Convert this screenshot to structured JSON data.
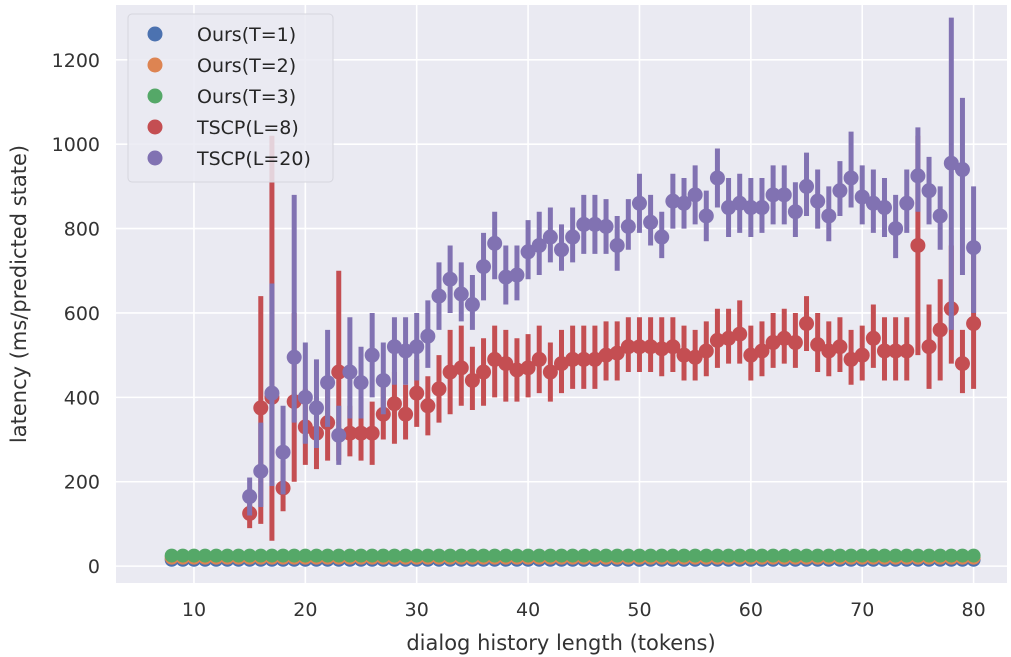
{
  "chart_data": {
    "type": "scatter",
    "xlabel": "dialog history length (tokens)",
    "ylabel": "latency (ms/predicted state)",
    "xlim": [
      3,
      83
    ],
    "ylim": [
      -40,
      1330
    ],
    "xticks": [
      10,
      20,
      30,
      40,
      50,
      60,
      70,
      80
    ],
    "yticks": [
      0,
      200,
      400,
      600,
      800,
      1000,
      1200
    ],
    "grid": true,
    "legend_position": "top-left",
    "series": [
      {
        "name": "Ours(T=1)",
        "color": "#4c72b0",
        "x_start": 8,
        "x_end": 80,
        "values": [
          15,
          15,
          15,
          15,
          15,
          15,
          15,
          15,
          15,
          15,
          15,
          15,
          15,
          15,
          15,
          15,
          15,
          15,
          15,
          15,
          15,
          15,
          15,
          15,
          15,
          15,
          15,
          15,
          15,
          15,
          15,
          15,
          15,
          15,
          15,
          15,
          15,
          15,
          15,
          15,
          15,
          15,
          15,
          15,
          15,
          15,
          15,
          15,
          15,
          15,
          15,
          15,
          15,
          15,
          15,
          15,
          15,
          15,
          15,
          15,
          15,
          15,
          15,
          15,
          15,
          15,
          15,
          15,
          15,
          15,
          15,
          15,
          15
        ],
        "err_low": [
          12,
          12,
          12,
          12,
          12,
          12,
          12,
          12,
          12,
          12,
          12,
          12,
          12,
          12,
          12,
          12,
          12,
          12,
          12,
          12,
          12,
          12,
          12,
          12,
          12,
          12,
          12,
          12,
          12,
          12,
          12,
          12,
          12,
          12,
          12,
          12,
          12,
          12,
          12,
          12,
          12,
          12,
          12,
          12,
          12,
          12,
          12,
          12,
          12,
          12,
          12,
          12,
          12,
          12,
          12,
          12,
          12,
          12,
          12,
          12,
          12,
          12,
          12,
          12,
          12,
          12,
          12,
          12,
          12,
          12,
          12,
          12,
          12
        ],
        "err_high": [
          18,
          18,
          18,
          18,
          18,
          18,
          18,
          18,
          18,
          18,
          18,
          18,
          18,
          18,
          18,
          18,
          18,
          18,
          18,
          18,
          18,
          18,
          18,
          18,
          18,
          18,
          18,
          18,
          18,
          18,
          18,
          18,
          18,
          18,
          18,
          18,
          18,
          18,
          18,
          18,
          18,
          18,
          18,
          18,
          18,
          18,
          18,
          18,
          18,
          18,
          18,
          18,
          18,
          18,
          18,
          18,
          18,
          18,
          18,
          18,
          18,
          18,
          18,
          18,
          18,
          18,
          18,
          18,
          18,
          18,
          18,
          18,
          18
        ]
      },
      {
        "name": "Ours(T=2)",
        "color": "#dd8452",
        "x_start": 8,
        "x_end": 80,
        "values": [
          20,
          20,
          20,
          20,
          20,
          20,
          20,
          20,
          20,
          20,
          20,
          20,
          20,
          20,
          20,
          20,
          20,
          20,
          20,
          20,
          20,
          20,
          20,
          20,
          20,
          20,
          20,
          20,
          20,
          20,
          20,
          20,
          20,
          20,
          20,
          20,
          20,
          20,
          20,
          20,
          20,
          20,
          20,
          20,
          20,
          20,
          20,
          20,
          20,
          20,
          20,
          20,
          20,
          20,
          20,
          20,
          20,
          20,
          20,
          20,
          20,
          20,
          20,
          20,
          20,
          20,
          20,
          20,
          20,
          20,
          20,
          20,
          20
        ],
        "err_low": [
          17,
          17,
          17,
          17,
          17,
          17,
          17,
          17,
          17,
          17,
          17,
          17,
          17,
          17,
          17,
          17,
          17,
          17,
          17,
          17,
          17,
          17,
          17,
          17,
          17,
          17,
          17,
          17,
          17,
          17,
          17,
          17,
          17,
          17,
          17,
          17,
          17,
          17,
          17,
          17,
          17,
          17,
          17,
          17,
          17,
          17,
          17,
          17,
          17,
          17,
          17,
          17,
          17,
          17,
          17,
          17,
          17,
          17,
          17,
          17,
          17,
          17,
          17,
          17,
          17,
          17,
          17,
          17,
          17,
          17,
          17,
          17,
          17
        ],
        "err_high": [
          23,
          23,
          23,
          23,
          23,
          23,
          23,
          23,
          23,
          23,
          23,
          23,
          23,
          23,
          23,
          23,
          23,
          23,
          23,
          23,
          23,
          23,
          23,
          23,
          23,
          23,
          23,
          23,
          23,
          23,
          23,
          23,
          23,
          23,
          23,
          23,
          23,
          23,
          23,
          23,
          23,
          23,
          23,
          23,
          23,
          23,
          23,
          23,
          23,
          23,
          23,
          23,
          23,
          23,
          23,
          23,
          23,
          23,
          23,
          23,
          23,
          23,
          23,
          23,
          23,
          23,
          23,
          23,
          23,
          23,
          23,
          23,
          23
        ]
      },
      {
        "name": "Ours(T=3)",
        "color": "#55a868",
        "x_start": 8,
        "x_end": 80,
        "values": [
          25,
          25,
          25,
          25,
          25,
          25,
          25,
          25,
          25,
          25,
          25,
          25,
          25,
          25,
          25,
          25,
          25,
          25,
          25,
          25,
          25,
          25,
          25,
          25,
          25,
          25,
          25,
          25,
          25,
          25,
          25,
          25,
          25,
          25,
          25,
          25,
          25,
          25,
          25,
          25,
          25,
          25,
          25,
          25,
          25,
          25,
          25,
          25,
          25,
          25,
          25,
          25,
          25,
          25,
          25,
          25,
          25,
          25,
          25,
          25,
          25,
          25,
          25,
          25,
          25,
          25,
          25,
          25,
          25,
          25,
          25,
          25,
          25
        ],
        "err_low": [
          22,
          22,
          22,
          22,
          22,
          22,
          22,
          22,
          22,
          22,
          22,
          22,
          22,
          22,
          22,
          22,
          22,
          22,
          22,
          22,
          22,
          22,
          22,
          22,
          22,
          22,
          22,
          22,
          22,
          22,
          22,
          22,
          22,
          22,
          22,
          22,
          22,
          22,
          22,
          22,
          22,
          22,
          22,
          22,
          22,
          22,
          22,
          22,
          22,
          22,
          22,
          22,
          22,
          22,
          22,
          22,
          22,
          22,
          22,
          22,
          22,
          22,
          22,
          22,
          22,
          22,
          22,
          22,
          22,
          22,
          22,
          22,
          22
        ],
        "err_high": [
          28,
          28,
          28,
          28,
          28,
          28,
          28,
          28,
          28,
          28,
          28,
          28,
          28,
          28,
          28,
          28,
          28,
          28,
          28,
          28,
          28,
          28,
          28,
          28,
          28,
          28,
          28,
          28,
          28,
          28,
          28,
          28,
          28,
          28,
          28,
          28,
          28,
          28,
          28,
          28,
          28,
          28,
          28,
          28,
          28,
          28,
          28,
          28,
          28,
          28,
          28,
          28,
          28,
          28,
          28,
          28,
          28,
          28,
          28,
          28,
          28,
          28,
          28,
          28,
          28,
          28,
          28,
          28,
          28,
          28,
          28,
          28,
          28
        ]
      },
      {
        "name": "TSCP(L=8)",
        "color": "#c44e52",
        "x_start": 15,
        "x_end": 80,
        "values": [
          125,
          375,
          400,
          185,
          390,
          330,
          315,
          340,
          460,
          315,
          315,
          315,
          360,
          385,
          360,
          410,
          380,
          420,
          460,
          470,
          440,
          460,
          490,
          480,
          465,
          470,
          490,
          460,
          480,
          490,
          490,
          490,
          500,
          505,
          520,
          520,
          520,
          515,
          520,
          500,
          495,
          510,
          535,
          540,
          550,
          500,
          510,
          530,
          540,
          530,
          575,
          525,
          510,
          520,
          490,
          500,
          540,
          510,
          510,
          510,
          760,
          520,
          560,
          610,
          480,
          575
        ],
        "err_low": [
          90,
          100,
          60,
          130,
          200,
          240,
          230,
          250,
          250,
          260,
          250,
          240,
          300,
          290,
          300,
          330,
          310,
          340,
          360,
          380,
          370,
          380,
          400,
          390,
          390,
          400,
          410,
          390,
          410,
          420,
          420,
          420,
          440,
          440,
          460,
          460,
          460,
          450,
          460,
          440,
          440,
          450,
          470,
          480,
          480,
          440,
          450,
          470,
          480,
          470,
          510,
          460,
          450,
          460,
          430,
          440,
          470,
          440,
          440,
          440,
          500,
          420,
          440,
          480,
          410,
          420
        ],
        "err_high": [
          160,
          640,
          1020,
          250,
          600,
          420,
          400,
          440,
          700,
          380,
          400,
          390,
          430,
          460,
          430,
          490,
          450,
          500,
          560,
          570,
          520,
          540,
          570,
          560,
          540,
          550,
          570,
          530,
          560,
          570,
          570,
          570,
          580,
          580,
          590,
          590,
          590,
          590,
          590,
          570,
          560,
          580,
          610,
          610,
          630,
          570,
          580,
          600,
          610,
          600,
          640,
          600,
          580,
          590,
          560,
          570,
          620,
          590,
          590,
          590,
          1020,
          620,
          680,
          760,
          560,
          740
        ]
      },
      {
        "name": "TSCP(L=20)",
        "color": "#8172b2",
        "x_start": 15,
        "x_end": 80,
        "values": [
          165,
          225,
          410,
          270,
          495,
          400,
          375,
          435,
          310,
          460,
          435,
          500,
          440,
          520,
          510,
          520,
          545,
          640,
          680,
          645,
          620,
          710,
          765,
          685,
          690,
          745,
          760,
          780,
          750,
          780,
          810,
          810,
          805,
          760,
          805,
          860,
          815,
          780,
          865,
          860,
          880,
          830,
          920,
          850,
          860,
          850,
          850,
          880,
          880,
          840,
          900,
          865,
          830,
          890,
          920,
          875,
          860,
          850,
          800,
          860,
          925,
          890,
          830,
          955,
          940,
          755
        ],
        "err_low": [
          120,
          140,
          190,
          170,
          340,
          290,
          280,
          330,
          240,
          350,
          350,
          400,
          360,
          430,
          430,
          440,
          470,
          560,
          600,
          580,
          560,
          630,
          680,
          620,
          630,
          680,
          690,
          720,
          700,
          720,
          740,
          740,
          740,
          700,
          750,
          790,
          760,
          730,
          800,
          800,
          810,
          770,
          850,
          780,
          790,
          780,
          790,
          810,
          810,
          780,
          830,
          800,
          770,
          830,
          850,
          810,
          790,
          780,
          730,
          790,
          840,
          810,
          750,
          560,
          690,
          600
        ],
        "err_high": [
          210,
          340,
          670,
          380,
          880,
          530,
          490,
          560,
          380,
          590,
          520,
          600,
          530,
          590,
          590,
          600,
          630,
          720,
          760,
          720,
          690,
          790,
          840,
          760,
          760,
          820,
          840,
          850,
          810,
          850,
          880,
          880,
          870,
          830,
          870,
          930,
          880,
          840,
          930,
          920,
          950,
          890,
          990,
          920,
          930,
          920,
          920,
          950,
          950,
          910,
          980,
          940,
          900,
          960,
          1030,
          950,
          940,
          920,
          880,
          940,
          1040,
          970,
          900,
          1300,
          1110,
          900
        ]
      }
    ]
  }
}
